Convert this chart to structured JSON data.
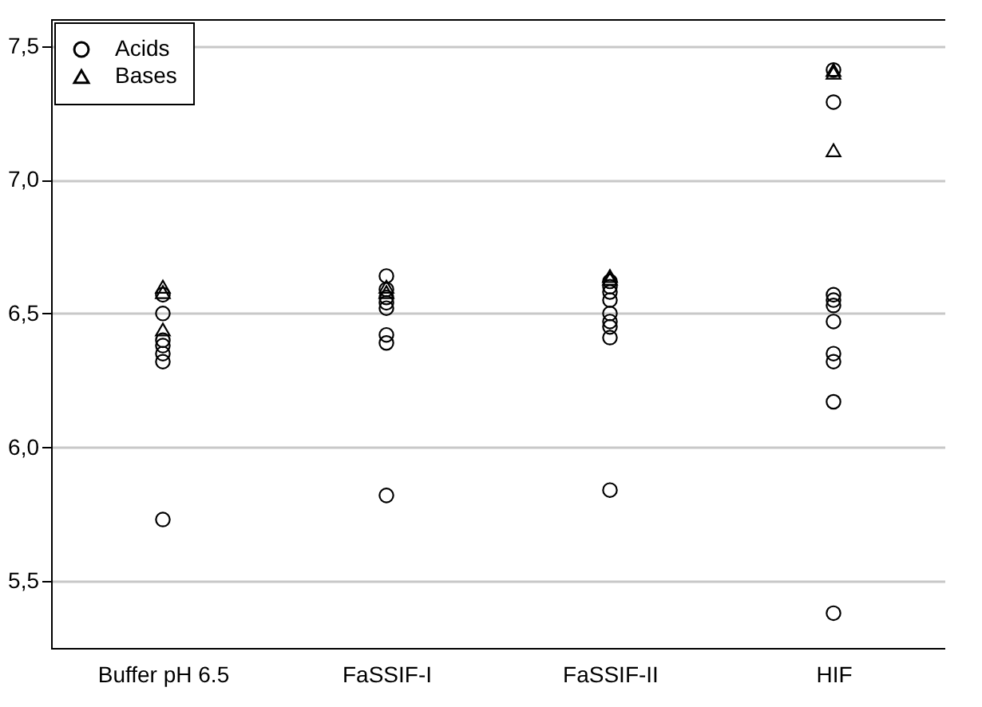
{
  "chart_data": {
    "type": "scatter",
    "categories": [
      "Buffer pH 6.5",
      "FaSSIF-I",
      "FaSSIF-II",
      "HIF"
    ],
    "series": [
      {
        "name": "Acids",
        "color": "#000000",
        "marker": "circle",
        "x": [
          "Buffer pH 6.5",
          "Buffer pH 6.5",
          "Buffer pH 6.5",
          "Buffer pH 6.5",
          "Buffer pH 6.5",
          "Buffer pH 6.5",
          "Buffer pH 6.5",
          "FaSSIF-I",
          "FaSSIF-I",
          "FaSSIF-I",
          "FaSSIF-I",
          "FaSSIF-I",
          "FaSSIF-I",
          "FaSSIF-I",
          "FaSSIF-I",
          "FaSSIF-II",
          "FaSSIF-II",
          "FaSSIF-II",
          "FaSSIF-II",
          "FaSSIF-II",
          "FaSSIF-II",
          "FaSSIF-II",
          "FaSSIF-II",
          "FaSSIF-II",
          "HIF",
          "HIF",
          "HIF",
          "HIF",
          "HIF",
          "HIF",
          "HIF",
          "HIF",
          "HIF",
          "HIF"
        ],
        "values": [
          5.73,
          6.32,
          6.35,
          6.38,
          6.4,
          6.5,
          6.57,
          6.64,
          6.59,
          6.56,
          6.54,
          6.52,
          6.42,
          6.39,
          5.82,
          6.62,
          6.6,
          6.58,
          6.55,
          6.5,
          6.47,
          6.45,
          6.41,
          5.84,
          7.41,
          7.29,
          6.57,
          6.55,
          6.53,
          6.47,
          6.35,
          6.32,
          6.17,
          5.38
        ]
      },
      {
        "name": "Bases",
        "color": "#000000",
        "marker": "triangle",
        "x": [
          "Buffer pH 6.5",
          "Buffer pH 6.5",
          "Buffer pH 6.5",
          "FaSSIF-I",
          "FaSSIF-I",
          "FaSSIF-II",
          "FaSSIF-II",
          "HIF",
          "HIF",
          "HIF"
        ],
        "values": [
          6.44,
          6.58,
          6.6,
          6.58,
          6.6,
          6.63,
          6.64,
          7.4,
          7.41,
          7.11
        ]
      }
    ],
    "ylim": [
      5.25,
      7.6
    ],
    "yticks": [
      {
        "value": 5.5,
        "label": "5,5"
      },
      {
        "value": 6.0,
        "label": "6,0"
      },
      {
        "value": 6.5,
        "label": "6,5"
      },
      {
        "value": 7.0,
        "label": "7,0"
      },
      {
        "value": 7.5,
        "label": "7,5"
      }
    ],
    "grid": "y",
    "legend": "top left"
  }
}
